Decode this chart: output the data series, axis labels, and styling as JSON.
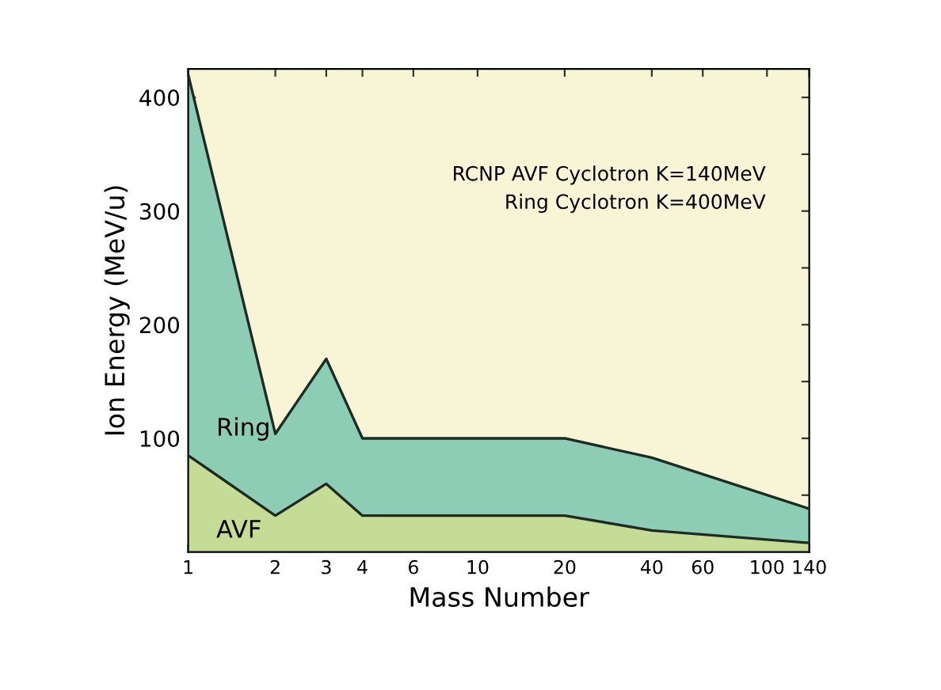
{
  "chart_data": {
    "type": "area",
    "xlabel": "Mass Number",
    "ylabel": "Ion Energy (MeV/u)",
    "log": "x",
    "x": [
      1,
      2,
      3,
      4,
      20,
      40,
      140
    ],
    "series": [
      {
        "name": "Ring",
        "color": "#8ecdb5",
        "values": [
          420,
          104,
          170,
          100,
          100,
          83,
          38
        ]
      },
      {
        "name": "AVF",
        "color": "#c5dc96",
        "values": [
          85,
          32,
          60,
          32,
          32,
          19,
          8
        ]
      }
    ],
    "xlim": [
      1,
      140
    ],
    "xticks": [
      1,
      2,
      3,
      4,
      6,
      10,
      20,
      40,
      60,
      100,
      140
    ],
    "ylim": [
      0,
      425
    ],
    "yticks": [
      {
        "value": 50,
        "label": null
      },
      100,
      {
        "value": 150,
        "label": null
      },
      200,
      {
        "value": 250,
        "label": null
      },
      300,
      {
        "value": 350,
        "label": null
      },
      400
    ],
    "annotations": [
      "RCNP AVF Cyclotron K=140MeV\nRing Cyclotron K=400MeV"
    ],
    "grid": false,
    "legend": false
  }
}
